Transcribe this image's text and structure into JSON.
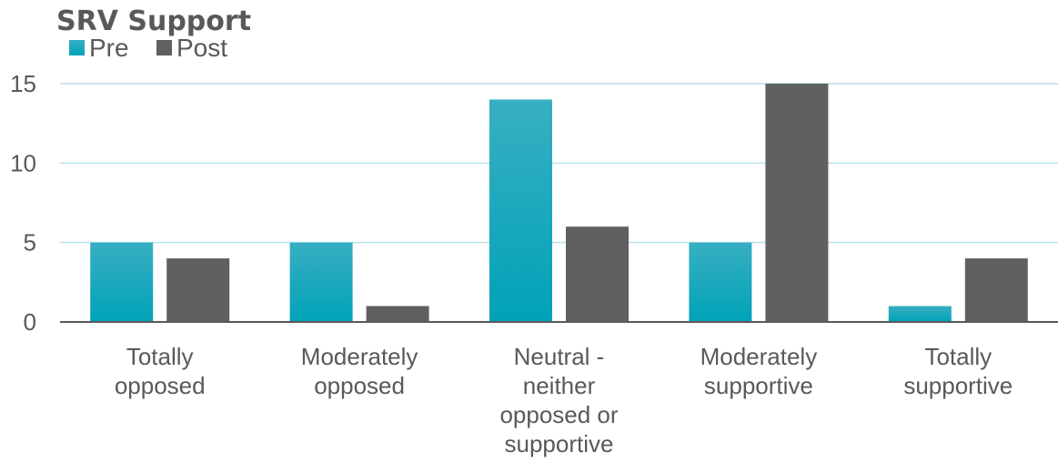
{
  "chart_data": {
    "type": "bar",
    "title": "SRV Support",
    "categories": [
      "Totally opposed",
      "Moderately opposed",
      "Neutral - neither opposed or supportive",
      "Moderately supportive",
      "Totally supportive"
    ],
    "category_lines": [
      [
        "Totally",
        "opposed"
      ],
      [
        "Moderately",
        "opposed"
      ],
      [
        "Neutral -",
        "neither",
        "opposed or",
        "supportive"
      ],
      [
        "Moderately",
        "supportive"
      ],
      [
        "Totally",
        "supportive"
      ]
    ],
    "series": [
      {
        "name": "Pre",
        "values": [
          5,
          5,
          14,
          5,
          1
        ],
        "color": "#08A5BB"
      },
      {
        "name": "Post",
        "values": [
          4,
          1,
          6,
          15,
          4
        ],
        "color": "#606060"
      }
    ],
    "xlabel": "",
    "ylabel": "",
    "ylim": [
      0,
      15
    ],
    "yticks": [
      "0",
      "5",
      "10",
      "15"
    ],
    "grid": true,
    "gridline_color": "#B8E1E8",
    "axis_color": "#595959",
    "legend": "top-left"
  }
}
